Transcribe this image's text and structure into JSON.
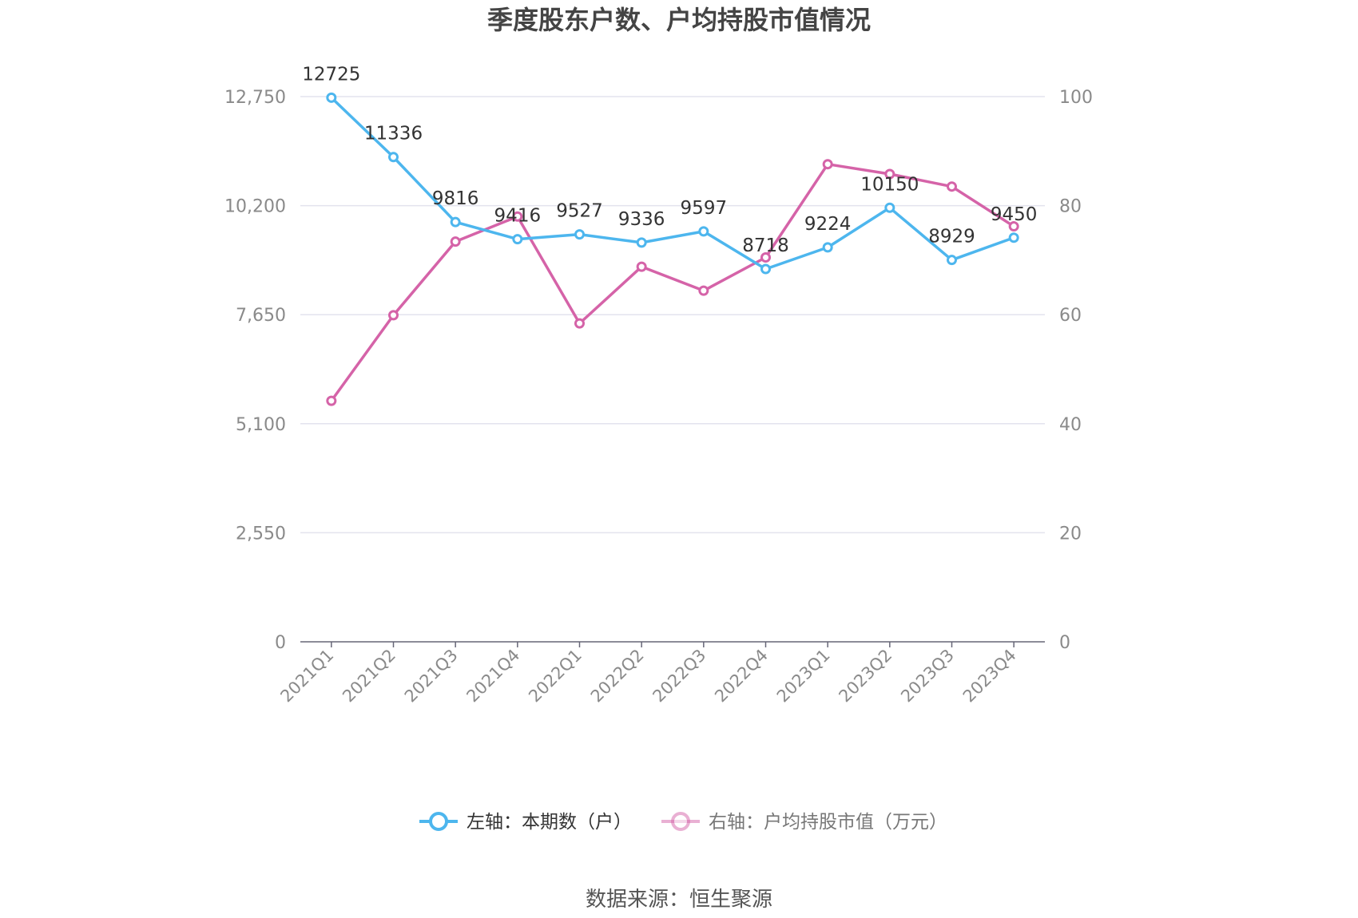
{
  "title": "季度股东户数、户均持股市值情况",
  "source": "数据来源：恒生聚源",
  "colors": {
    "left_series": "#4db6ee",
    "right_series": "#d563a8",
    "grid": "#e3e3ee",
    "axis": "#666677"
  },
  "chart_data": {
    "type": "line",
    "title": "季度股东户数、户均持股市值情况",
    "categories": [
      "2021Q1",
      "2021Q2",
      "2021Q3",
      "2021Q4",
      "2022Q1",
      "2022Q2",
      "2022Q3",
      "2022Q4",
      "2023Q1",
      "2023Q2",
      "2023Q3",
      "2023Q4"
    ],
    "y_left": {
      "ticks": [
        "0",
        "2,550",
        "5,100",
        "7,650",
        "10,200",
        "12,750"
      ],
      "ylim": [
        0,
        12750
      ]
    },
    "y_right": {
      "ticks": [
        "0",
        "20",
        "40",
        "60",
        "80",
        "100"
      ],
      "ylim": [
        0,
        100
      ]
    },
    "series": [
      {
        "name": "左轴：本期数（户）",
        "axis": "left",
        "values": [
          12725,
          11336,
          9816,
          9416,
          9527,
          9336,
          9597,
          8718,
          9224,
          10150,
          8929,
          9450
        ],
        "labels": [
          "12725",
          "11336",
          "9816",
          "9416",
          "9527",
          "9336",
          "9597",
          "8718",
          "9224",
          "10150",
          "8929",
          "9450"
        ]
      },
      {
        "name": "右轴：户均持股市值（万元）",
        "axis": "right",
        "values": [
          44.2,
          59.9,
          73.4,
          78.0,
          58.4,
          68.8,
          64.4,
          70.5,
          87.6,
          85.8,
          83.5,
          76.2
        ]
      }
    ],
    "legend": "bottom-center",
    "grid": true
  }
}
